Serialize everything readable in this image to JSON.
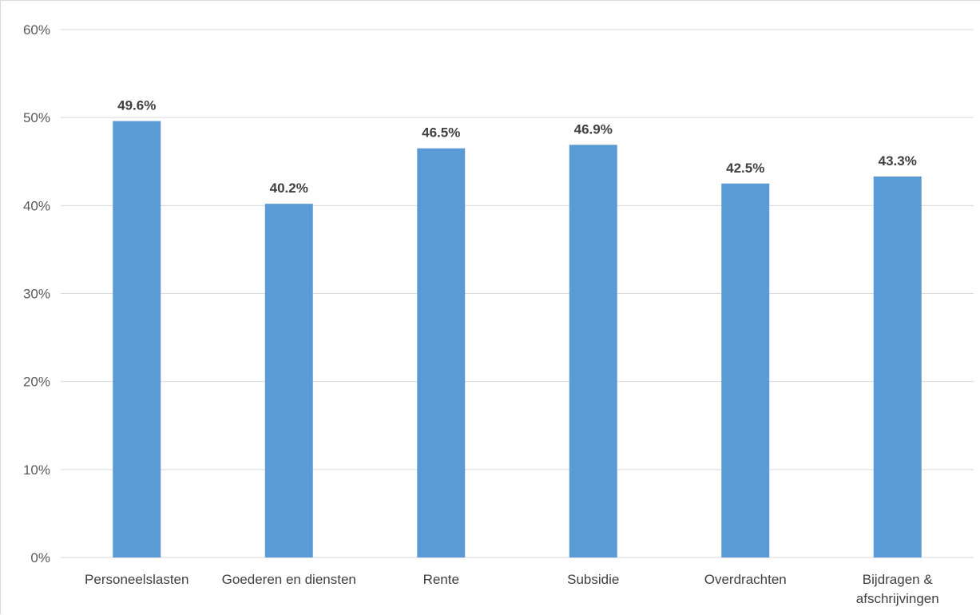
{
  "colors": {
    "bar": "#5b9bd5",
    "grid": "#d9d9d9",
    "tick_text": "#595959",
    "label_text": "#404040"
  },
  "chart_data": {
    "type": "bar",
    "title": "",
    "xlabel": "",
    "ylabel": "",
    "ylim": [
      0,
      60
    ],
    "yticks": [
      0,
      10,
      20,
      30,
      40,
      50,
      60
    ],
    "ytick_labels": [
      "0%",
      "10%",
      "20%",
      "30%",
      "40%",
      "50%",
      "60%"
    ],
    "grid": true,
    "legend": "none",
    "categories": [
      [
        "Personeelslasten"
      ],
      [
        "Goederen en diensten"
      ],
      [
        "Rente"
      ],
      [
        "Subsidie"
      ],
      [
        "Overdrachten"
      ],
      [
        "Bijdragen &",
        "afschrijvingen"
      ]
    ],
    "values": [
      49.6,
      40.2,
      46.5,
      46.9,
      42.5,
      43.3
    ],
    "data_labels": [
      "49.6%",
      "40.2%",
      "46.5%",
      "46.9%",
      "42.5%",
      "43.3%"
    ]
  }
}
